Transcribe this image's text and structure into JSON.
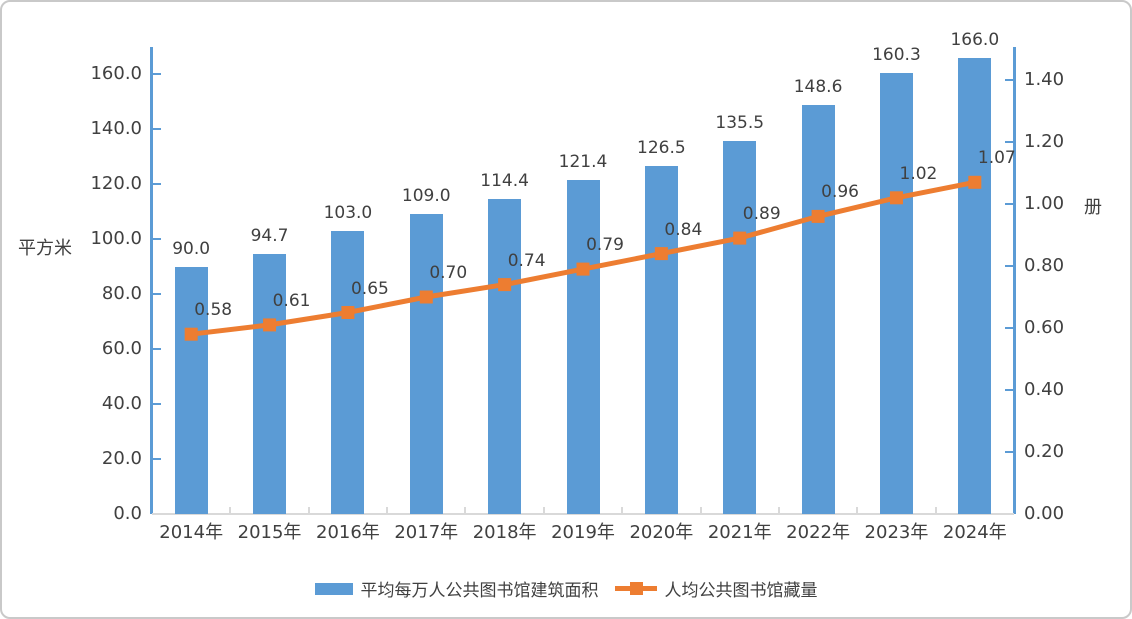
{
  "chart_data": {
    "type": "combo",
    "categories": [
      "2014年",
      "2015年",
      "2016年",
      "2017年",
      "2018年",
      "2019年",
      "2020年",
      "2021年",
      "2022年",
      "2023年",
      "2024年"
    ],
    "series": [
      {
        "name": "平均每万人公共图书馆建筑面积",
        "type": "bar",
        "yaxis": "left",
        "color": "#5B9BD5",
        "values": [
          90.0,
          94.7,
          103.0,
          109.0,
          114.4,
          121.4,
          126.5,
          135.5,
          148.6,
          160.3,
          166.0
        ],
        "data_labels": [
          "90.0",
          "94.7",
          "103.0",
          "109.0",
          "114.4",
          "121.4",
          "126.5",
          "135.5",
          "148.6",
          "160.3",
          "166.0"
        ]
      },
      {
        "name": "人均公共图书馆藏量",
        "type": "line",
        "yaxis": "right",
        "color": "#ED7D31",
        "values": [
          0.58,
          0.61,
          0.65,
          0.7,
          0.74,
          0.79,
          0.84,
          0.89,
          0.96,
          1.02,
          1.07
        ],
        "data_labels": [
          "0.58",
          "0.61",
          "0.65",
          "0.70",
          "0.74",
          "0.79",
          "0.84",
          "0.89",
          "0.96",
          "1.02",
          "1.07"
        ]
      }
    ],
    "left_axis": {
      "title": "平方米",
      "ticks": [
        "0.0",
        "20.0",
        "40.0",
        "60.0",
        "80.0",
        "100.0",
        "120.0",
        "140.0",
        "160.0"
      ],
      "min": 0,
      "tick_step": 20
    },
    "right_axis": {
      "title": "册",
      "ticks": [
        "0.00",
        "0.20",
        "0.40",
        "0.60",
        "0.80",
        "1.00",
        "1.20",
        "1.40"
      ],
      "min": 0,
      "tick_step": 0.2
    },
    "grid": false,
    "legend_position": "bottom"
  },
  "colors": {
    "bar": "#5B9BD5",
    "line": "#ED7D31",
    "axis_vertical": "#5B9BD5",
    "axis_bottom": "#D9D9D9",
    "text": "#404040"
  }
}
